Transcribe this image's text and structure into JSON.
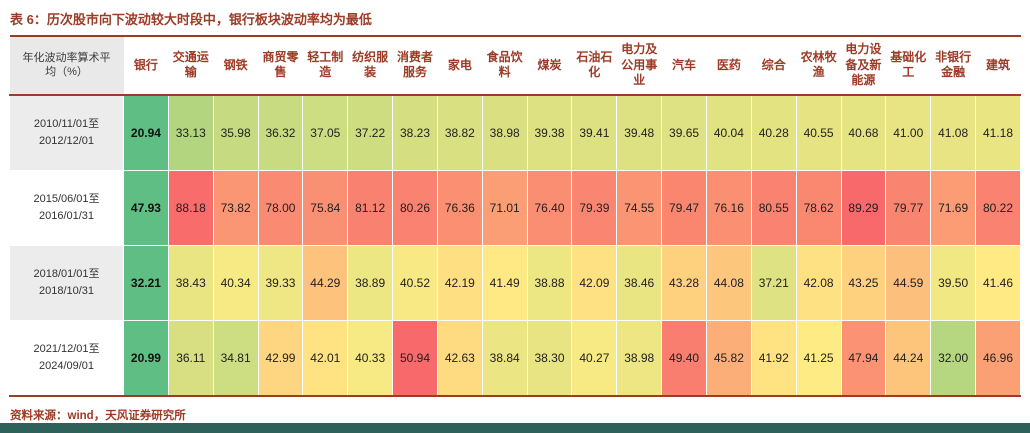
{
  "colors": {
    "title_red": "#9C3B26",
    "footer_bar_teal": "#2F615B",
    "label_alt_bg": "#ECECEC"
  },
  "chart_data": {
    "type": "heatmap",
    "title": "表 6：历次股市向下波动较大时段中，银行板块波动率均为最低",
    "source": "资料来源：wind，天风证券研究所",
    "corner_header": "年化波动率算术平均（%）",
    "columns": [
      "银行",
      "交通运输",
      "钢铁",
      "商贸零售",
      "轻工制造",
      "纺织服装",
      "消费者服务",
      "家电",
      "食品饮料",
      "煤炭",
      "石油石化",
      "电力及公用事业",
      "汽车",
      "医药",
      "综合",
      "农林牧渔",
      "电力设备及新能源",
      "基础化工",
      "非银行金融",
      "建筑"
    ],
    "rows": [
      {
        "period": "2010/11/01至2012/12/01",
        "values": [
          20.94,
          33.13,
          35.98,
          36.32,
          37.05,
          37.22,
          38.23,
          38.82,
          38.98,
          39.38,
          39.41,
          39.48,
          39.65,
          40.04,
          40.28,
          40.55,
          40.68,
          41.0,
          41.08,
          41.18
        ]
      },
      {
        "period": "2015/06/01至2016/01/31",
        "values": [
          47.93,
          88.18,
          73.82,
          78.0,
          75.84,
          81.12,
          80.26,
          76.36,
          71.01,
          76.4,
          79.39,
          74.55,
          79.47,
          76.16,
          80.55,
          78.62,
          89.29,
          79.77,
          71.69,
          80.22
        ]
      },
      {
        "period": "2018/01/01至2018/10/31",
        "values": [
          32.21,
          38.43,
          40.34,
          39.33,
          44.29,
          38.89,
          40.52,
          42.19,
          41.49,
          38.88,
          42.09,
          38.46,
          43.28,
          44.08,
          37.21,
          42.08,
          43.25,
          44.59,
          39.5,
          41.46
        ]
      },
      {
        "period": "2021/12/01至2024/09/01",
        "values": [
          20.99,
          36.11,
          34.81,
          42.99,
          42.01,
          40.33,
          50.94,
          42.63,
          38.84,
          38.3,
          40.27,
          38.98,
          49.4,
          45.82,
          41.92,
          41.25,
          47.94,
          44.24,
          32.0,
          46.96
        ]
      }
    ],
    "highlight_column_index": 0,
    "color_groups": [
      [
        0,
        1
      ],
      [
        2,
        3
      ]
    ],
    "color_scale": {
      "min_color": "#63BE7B",
      "mid_color": "#FFEB84",
      "max_color": "#F8696B",
      "midpoint": "50th percentile",
      "bank_column_color": "#5FBE83"
    }
  }
}
